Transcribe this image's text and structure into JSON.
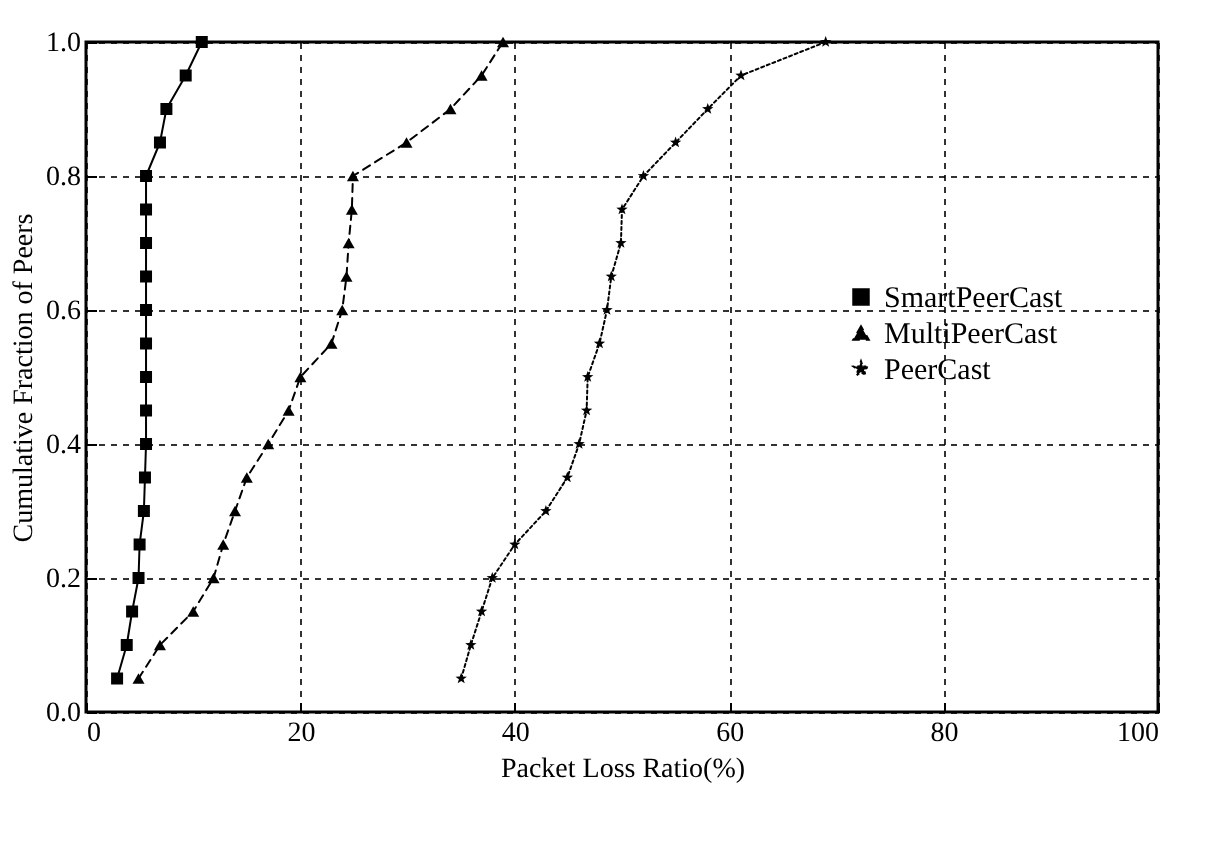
{
  "chart_data": {
    "type": "line",
    "xlabel": "Packet Loss Ratio(%)",
    "ylabel": "Cumulative  Fraction of Peers",
    "xlim": [
      0,
      100
    ],
    "xticks": [
      0,
      20,
      40,
      60,
      80,
      100
    ],
    "ylim": [
      0,
      1
    ],
    "yticks": [
      {
        "value": 0,
        "label": "0.0"
      },
      0.2,
      0.4,
      0.6,
      0.8,
      {
        "value": 1,
        "label": "1.0"
      }
    ],
    "grid": true,
    "legend": "right",
    "series": [
      {
        "name": "SmartPeerCast",
        "color": "#000000",
        "marker": "square",
        "line_style": "solid",
        "x": [
          2.9,
          3.8,
          4.3,
          4.9,
          5.0,
          5.4,
          5.5,
          5.6,
          5.6,
          5.6,
          5.6,
          5.6,
          5.6,
          5.6,
          5.6,
          5.6,
          6.9,
          7.5,
          9.3,
          10.8
        ],
        "values": [
          0.05,
          0.1,
          0.15,
          0.2,
          0.25,
          0.3,
          0.35,
          0.4,
          0.45,
          0.5,
          0.55,
          0.6,
          0.65,
          0.7,
          0.75,
          0.8,
          0.85,
          0.9,
          0.95,
          1.0
        ]
      },
      {
        "name": "MultiPeerCast",
        "color": "#000000",
        "marker": "triangle",
        "line_style": "dashed",
        "x": [
          4.9,
          6.9,
          10.0,
          11.9,
          12.8,
          13.9,
          15.0,
          17.0,
          18.9,
          20.0,
          22.9,
          23.9,
          24.3,
          24.5,
          24.8,
          24.9,
          29.9,
          34.0,
          36.9,
          38.9
        ],
        "values": [
          0.05,
          0.1,
          0.15,
          0.2,
          0.25,
          0.3,
          0.35,
          0.4,
          0.45,
          0.5,
          0.55,
          0.6,
          0.65,
          0.7,
          0.75,
          0.8,
          0.85,
          0.9,
          0.95,
          1.0
        ]
      },
      {
        "name": "PeerCast",
        "color": "#000000",
        "marker": "star",
        "line_style": "dotted",
        "x": [
          35.0,
          35.9,
          36.9,
          37.9,
          40.0,
          42.9,
          44.9,
          46.0,
          46.7,
          46.8,
          47.9,
          48.6,
          49.0,
          49.9,
          50.0,
          52.0,
          55.0,
          58.0,
          61.1,
          69.0
        ],
        "values": [
          0.05,
          0.1,
          0.15,
          0.2,
          0.25,
          0.3,
          0.35,
          0.4,
          0.45,
          0.5,
          0.55,
          0.6,
          0.65,
          0.7,
          0.75,
          0.8,
          0.85,
          0.9,
          0.95,
          1.0
        ]
      }
    ]
  }
}
